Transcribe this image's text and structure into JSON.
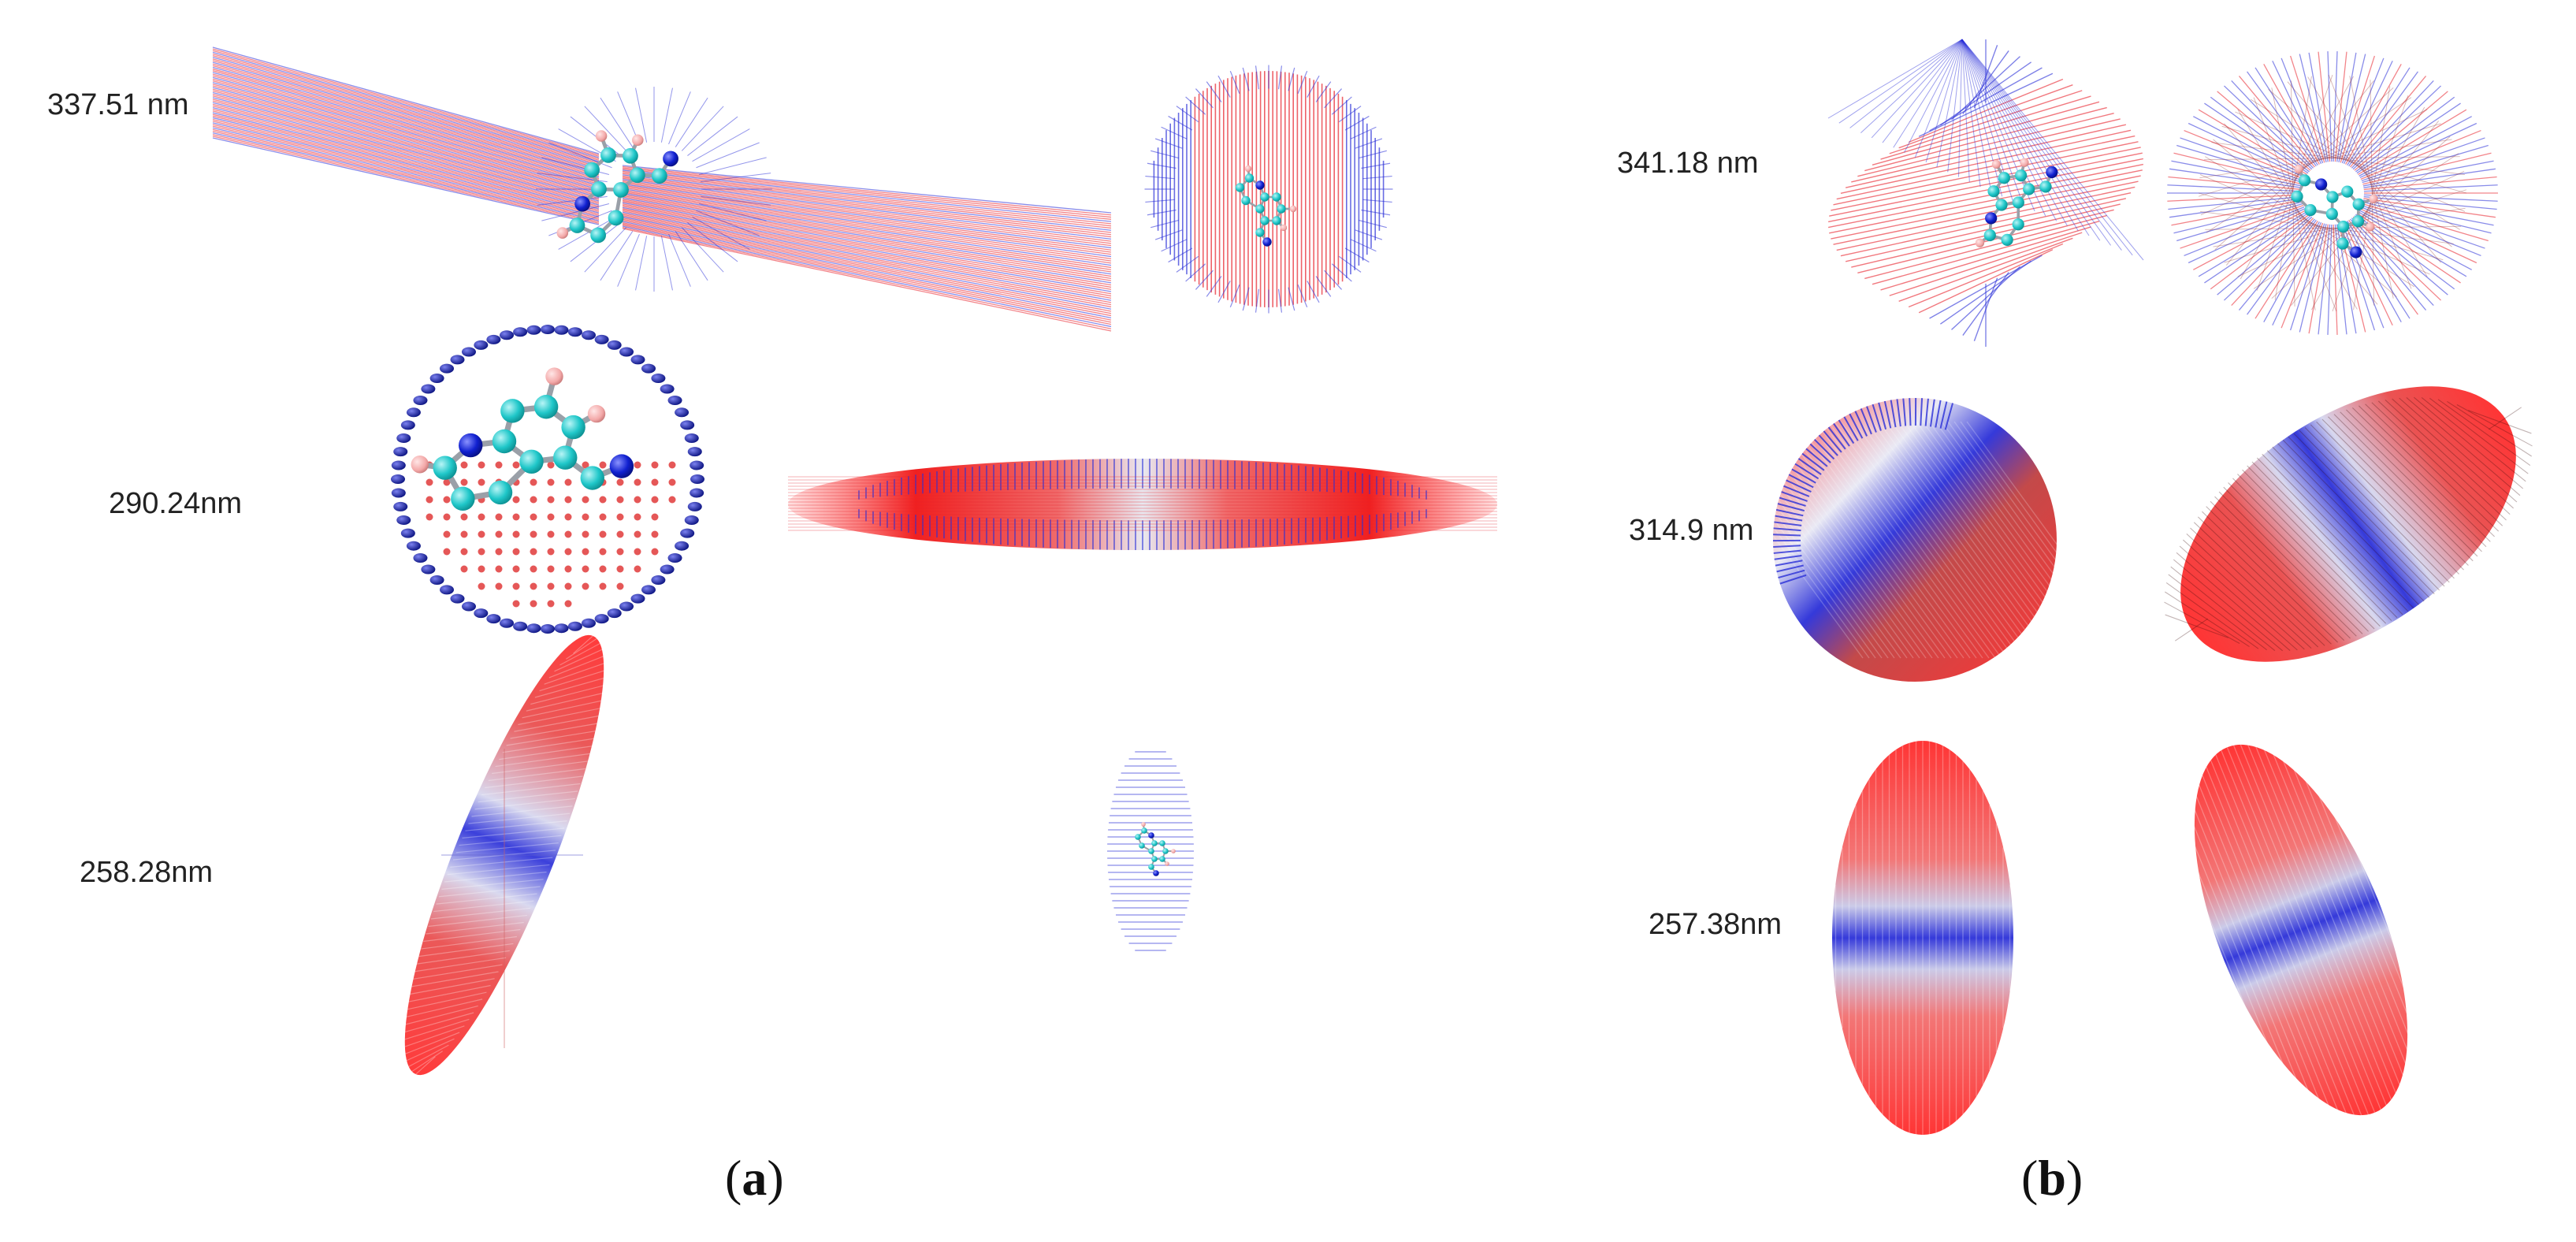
{
  "colors": {
    "negative_lobe": "#e8202a",
    "positive_lobe": "#2a2fd8",
    "carbon_atom": "#1fc7c9",
    "nitrogen_atom": "#1020d0",
    "hydrogen_atom": "#f3a8a8",
    "background": "#ffffff"
  },
  "panels": {
    "a": {
      "label_open": "(",
      "label_letter": "a",
      "label_close": ")",
      "wavelengths": [
        "337.51 nm",
        "290.24nm",
        "258.28nm"
      ]
    },
    "b": {
      "label_open": "(",
      "label_letter": "b",
      "label_close": ")",
      "wavelengths": [
        "341.18 nm",
        "314.9 nm",
        "257.38nm"
      ]
    }
  }
}
